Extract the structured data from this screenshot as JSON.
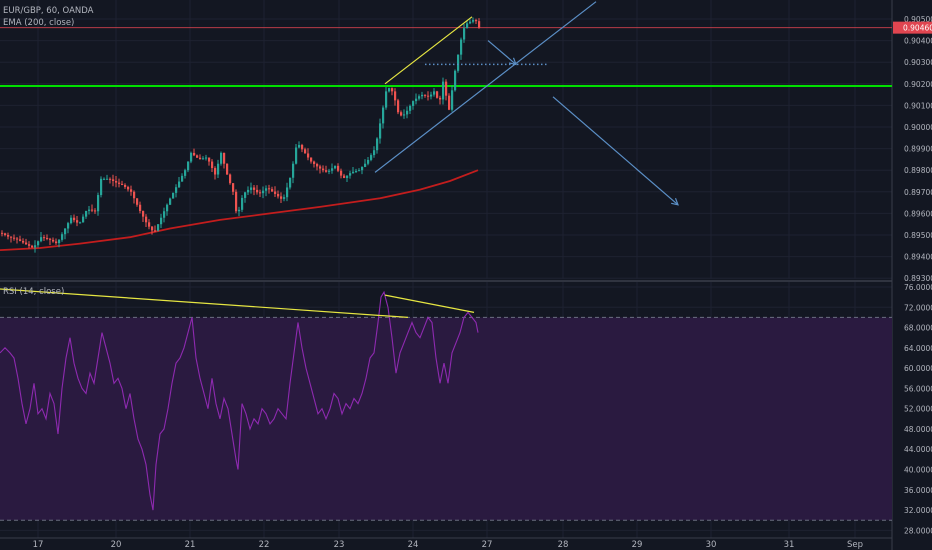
{
  "legend": {
    "symbol": "EUR/GBP, 60, OANDA",
    "ema": "EMA (200, close)",
    "rsi": "RSI (14, close)"
  },
  "colors": {
    "background": "#131722",
    "grid": "#1e2231",
    "up": "#26a69a",
    "down": "#ef5350",
    "ema": "#c21d1d",
    "horizontal_level": "#00e000",
    "trend": "#e6e642",
    "arrows": "#5b8fc6",
    "rsi_line": "#8e2ab0",
    "rsi_band": "#2a1a40",
    "price_marker": "#e04550"
  },
  "chart_data": [
    {
      "type": "candlestick",
      "title": "EUR/GBP, 60, OANDA",
      "x_ticks": [
        "17",
        "20",
        "21",
        "22",
        "23",
        "24",
        "27",
        "28",
        "29",
        "30",
        "31",
        "Sep"
      ],
      "y_ticks": [
        "0.90500",
        "0.90400",
        "0.90300",
        "0.90200",
        "0.90100",
        "0.90000",
        "0.89900",
        "0.89800",
        "0.89700",
        "0.89600",
        "0.89500",
        "0.89400",
        "0.89300"
      ],
      "ylim": [
        0.8932,
        0.9052
      ],
      "last_price": 0.9046,
      "last_price_label": "0.90460",
      "horizontal_level": 0.9019,
      "close_path": [
        [
          0,
          0.8951
        ],
        [
          8,
          0.8949
        ],
        [
          16,
          0.8948
        ],
        [
          24,
          0.8946
        ],
        [
          32,
          0.8944
        ],
        [
          40,
          0.8949
        ],
        [
          48,
          0.8948
        ],
        [
          56,
          0.8946
        ],
        [
          64,
          0.8953
        ],
        [
          70,
          0.8958
        ],
        [
          78,
          0.8955
        ],
        [
          86,
          0.8962
        ],
        [
          94,
          0.8961
        ],
        [
          100,
          0.8976
        ],
        [
          108,
          0.8976
        ],
        [
          116,
          0.8974
        ],
        [
          122,
          0.8973
        ],
        [
          130,
          0.897
        ],
        [
          138,
          0.8962
        ],
        [
          146,
          0.8955
        ],
        [
          153,
          0.8951
        ],
        [
          160,
          0.8958
        ],
        [
          168,
          0.8966
        ],
        [
          176,
          0.8973
        ],
        [
          184,
          0.898
        ],
        [
          190,
          0.8988
        ],
        [
          198,
          0.8985
        ],
        [
          206,
          0.8986
        ],
        [
          214,
          0.8978
        ],
        [
          220,
          0.8988
        ],
        [
          226,
          0.8978
        ],
        [
          232,
          0.897
        ],
        [
          236,
          0.8958
        ],
        [
          242,
          0.8969
        ],
        [
          250,
          0.8972
        ],
        [
          258,
          0.8969
        ],
        [
          266,
          0.8972
        ],
        [
          274,
          0.8969
        ],
        [
          282,
          0.8966
        ],
        [
          290,
          0.8978
        ],
        [
          296,
          0.8993
        ],
        [
          302,
          0.8989
        ],
        [
          310,
          0.8984
        ],
        [
          318,
          0.8981
        ],
        [
          326,
          0.8979
        ],
        [
          334,
          0.8982
        ],
        [
          342,
          0.8976
        ],
        [
          350,
          0.8979
        ],
        [
          358,
          0.898
        ],
        [
          366,
          0.8984
        ],
        [
          374,
          0.899
        ],
        [
          380,
          0.9004
        ],
        [
          386,
          0.9019
        ],
        [
          392,
          0.9016
        ],
        [
          398,
          0.9005
        ],
        [
          404,
          0.9006
        ],
        [
          412,
          0.9012
        ],
        [
          420,
          0.9015
        ],
        [
          428,
          0.9014
        ],
        [
          434,
          0.9017
        ],
        [
          438,
          0.901
        ],
        [
          442,
          0.9021
        ],
        [
          448,
          0.9008
        ],
        [
          454,
          0.9026
        ],
        [
          458,
          0.9036
        ],
        [
          462,
          0.9045
        ],
        [
          466,
          0.9048
        ],
        [
          470,
          0.9049
        ],
        [
          474,
          0.905
        ],
        [
          478,
          0.9046
        ]
      ],
      "ema_path": [
        [
          0,
          0.8943
        ],
        [
          40,
          0.8944
        ],
        [
          80,
          0.8946
        ],
        [
          130,
          0.8949
        ],
        [
          170,
          0.8953
        ],
        [
          220,
          0.8957
        ],
        [
          270,
          0.896
        ],
        [
          320,
          0.8963
        ],
        [
          380,
          0.8967
        ],
        [
          420,
          0.8971
        ],
        [
          450,
          0.8975
        ],
        [
          478,
          0.898
        ]
      ],
      "drawings": {
        "trend_top": [
          [
            385,
            0.902
          ],
          [
            472,
            0.9051
          ]
        ],
        "channel_line": [
          [
            375,
            0.8979
          ],
          [
            596,
            0.9058
          ]
        ],
        "dotted_level": [
          [
            425,
            0.9029
          ],
          [
            548,
            0.9029
          ]
        ],
        "arrow_small": [
          [
            488,
            0.904
          ],
          [
            516,
            0.9029
          ]
        ],
        "arrow_long": [
          [
            553,
            0.9014
          ],
          [
            678,
            0.8964
          ]
        ]
      }
    },
    {
      "type": "line",
      "title": "RSI (14, close)",
      "y_ticks": [
        "76.0000",
        "72.0000",
        "68.0000",
        "64.0000",
        "60.0000",
        "56.0000",
        "52.0000",
        "48.0000",
        "44.0000",
        "40.0000",
        "36.0000",
        "32.0000",
        "28.0000"
      ],
      "ylim": [
        27.5,
        76.5
      ],
      "band": [
        30,
        70
      ],
      "series": [
        {
          "values": [
            [
              0,
              63
            ],
            [
              5,
              64
            ],
            [
              10,
              63
            ],
            [
              14,
              62
            ],
            [
              18,
              58
            ],
            [
              22,
              53
            ],
            [
              26,
              49
            ],
            [
              30,
              52
            ],
            [
              34,
              57
            ],
            [
              38,
              51
            ],
            [
              42,
              52
            ],
            [
              46,
              50
            ],
            [
              50,
              55
            ],
            [
              54,
              53
            ],
            [
              58,
              47
            ],
            [
              62,
              56
            ],
            [
              66,
              62
            ],
            [
              70,
              66
            ],
            [
              74,
              61
            ],
            [
              78,
              58
            ],
            [
              82,
              56
            ],
            [
              86,
              55
            ],
            [
              90,
              59
            ],
            [
              94,
              57
            ],
            [
              98,
              62
            ],
            [
              102,
              67
            ],
            [
              106,
              64
            ],
            [
              110,
              61
            ],
            [
              114,
              57
            ],
            [
              118,
              58
            ],
            [
              122,
              56
            ],
            [
              126,
              52
            ],
            [
              130,
              55
            ],
            [
              134,
              50
            ],
            [
              138,
              46
            ],
            [
              142,
              44
            ],
            [
              146,
              41
            ],
            [
              150,
              35
            ],
            [
              153,
              32
            ],
            [
              156,
              41
            ],
            [
              160,
              47
            ],
            [
              164,
              48
            ],
            [
              168,
              52
            ],
            [
              172,
              57
            ],
            [
              176,
              61
            ],
            [
              180,
              62
            ],
            [
              184,
              64
            ],
            [
              188,
              67
            ],
            [
              192,
              70
            ],
            [
              196,
              62
            ],
            [
              200,
              58
            ],
            [
              204,
              55
            ],
            [
              208,
              52
            ],
            [
              212,
              58
            ],
            [
              216,
              53
            ],
            [
              220,
              50
            ],
            [
              224,
              54
            ],
            [
              228,
              52
            ],
            [
              232,
              47
            ],
            [
              236,
              42
            ],
            [
              238,
              40
            ],
            [
              242,
              53
            ],
            [
              246,
              51
            ],
            [
              250,
              48
            ],
            [
              254,
              50
            ],
            [
              258,
              49
            ],
            [
              262,
              52
            ],
            [
              266,
              51
            ],
            [
              270,
              49
            ],
            [
              274,
              50
            ],
            [
              278,
              52
            ],
            [
              282,
              51
            ],
            [
              286,
              50
            ],
            [
              290,
              57
            ],
            [
              294,
              63
            ],
            [
              298,
              69
            ],
            [
              302,
              64
            ],
            [
              306,
              60
            ],
            [
              310,
              57
            ],
            [
              314,
              54
            ],
            [
              318,
              51
            ],
            [
              322,
              52
            ],
            [
              326,
              50
            ],
            [
              330,
              52
            ],
            [
              334,
              55
            ],
            [
              338,
              54
            ],
            [
              342,
              51
            ],
            [
              346,
              53
            ],
            [
              350,
              52
            ],
            [
              354,
              54
            ],
            [
              358,
              53
            ],
            [
              362,
              55
            ],
            [
              366,
              58
            ],
            [
              370,
              62
            ],
            [
              374,
              63
            ],
            [
              378,
              69
            ],
            [
              381,
              74
            ],
            [
              384,
              75
            ],
            [
              388,
              72
            ],
            [
              392,
              66
            ],
            [
              396,
              59
            ],
            [
              400,
              63
            ],
            [
              404,
              65
            ],
            [
              408,
              67
            ],
            [
              412,
              69
            ],
            [
              416,
              67
            ],
            [
              420,
              66
            ],
            [
              424,
              68
            ],
            [
              428,
              70
            ],
            [
              432,
              69
            ],
            [
              436,
              62
            ],
            [
              440,
              57
            ],
            [
              444,
              61
            ],
            [
              448,
              57
            ],
            [
              452,
              63
            ],
            [
              456,
              65
            ],
            [
              460,
              67
            ],
            [
              464,
              70
            ],
            [
              468,
              71
            ],
            [
              472,
              70
            ],
            [
              476,
              69
            ],
            [
              478,
              67
            ]
          ]
        }
      ],
      "drawings": {
        "divergence_left": [
          [
            0,
            75.6
          ],
          [
            408,
            70.0
          ]
        ],
        "divergence_right": [
          [
            385,
            74.4
          ],
          [
            474,
            71.0
          ]
        ]
      }
    }
  ]
}
